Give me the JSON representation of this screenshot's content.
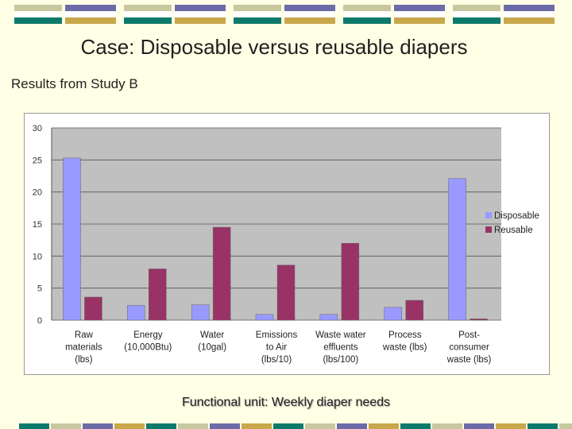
{
  "slide": {
    "title": "Case: Disposable versus reusable diapers",
    "subtitle": "Results from Study B",
    "footer": "Functional unit: Weekly diaper needs"
  },
  "colors": {
    "background": "#ffffe5",
    "deco_navy": "#6b6ba8",
    "deco_teal": "#0e7a6b",
    "deco_olive": "#c8c8a0",
    "deco_gold": "#c8a84a",
    "disposable": "#9999ff",
    "reusable": "#993366",
    "plot_bg": "#c0c0c0"
  },
  "chart_data": {
    "type": "bar",
    "categories": [
      [
        "Raw",
        "materials",
        "(lbs)"
      ],
      [
        "Energy",
        "(10,000Btu)"
      ],
      [
        "Water",
        "(10gal)"
      ],
      [
        "Emissions",
        "to Air",
        "(lbs/10)"
      ],
      [
        "Waste water",
        "effluents",
        "(lbs/100)"
      ],
      [
        "Process",
        "waste (lbs)"
      ],
      [
        "Post-",
        "consumer",
        "waste (lbs)"
      ]
    ],
    "series": [
      {
        "name": "Disposable",
        "values": [
          25.3,
          2.3,
          2.4,
          0.9,
          0.9,
          2.0,
          22.1
        ]
      },
      {
        "name": "Reusable",
        "values": [
          3.6,
          8.0,
          14.5,
          8.6,
          12.0,
          3.1,
          0.2
        ]
      }
    ],
    "ylim": [
      0,
      30
    ],
    "yticks": [
      0,
      5,
      10,
      15,
      20,
      25,
      30
    ],
    "grid": true,
    "legend": "right"
  }
}
